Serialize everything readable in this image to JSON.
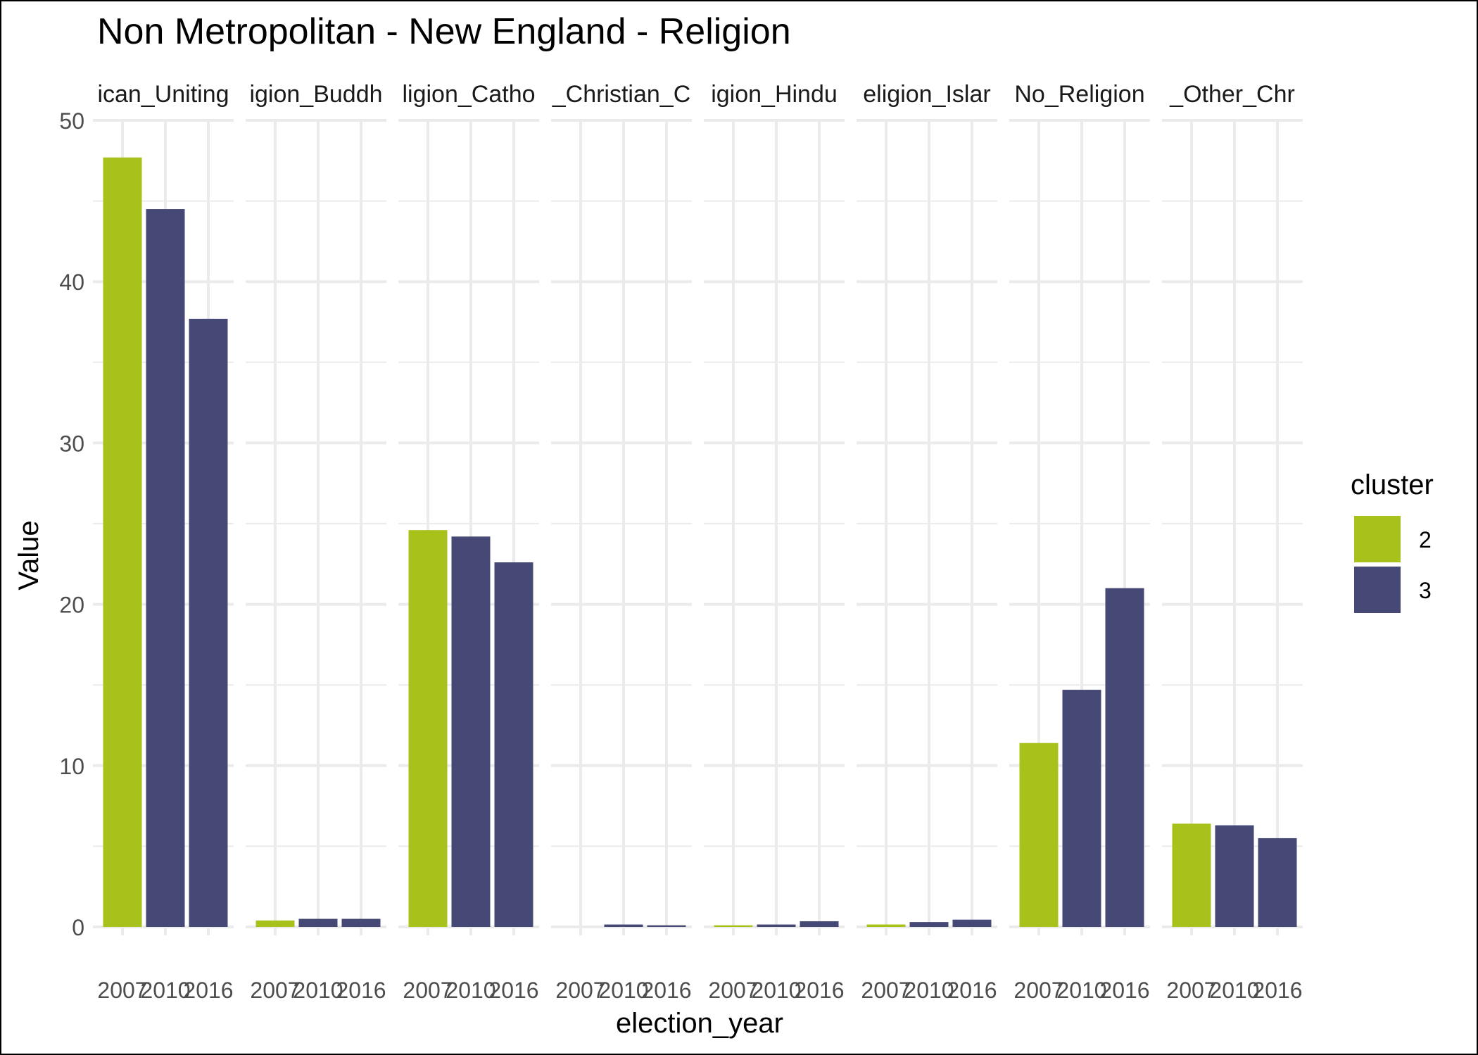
{
  "chart_data": {
    "type": "bar",
    "title": "Non Metropolitan - New England - Religion",
    "xlabel": "election_year",
    "ylabel": "Value",
    "ylim": [
      0,
      50
    ],
    "yticks": [
      0,
      10,
      20,
      30,
      40,
      50
    ],
    "grid": true,
    "legend": {
      "title": "cluster",
      "position": "right"
    },
    "colors": {
      "2": "#a8c21b",
      "3": "#464875"
    },
    "categories": [
      "2007",
      "2010",
      "2016"
    ],
    "facets": [
      {
        "label": "ican_Uniting",
        "bars": [
          {
            "x": "2007",
            "value": 47.7,
            "cluster": "2"
          },
          {
            "x": "2010",
            "value": 44.5,
            "cluster": "3"
          },
          {
            "x": "2016",
            "value": 37.7,
            "cluster": "3"
          }
        ]
      },
      {
        "label": "igion_Buddh",
        "bars": [
          {
            "x": "2007",
            "value": 0.4,
            "cluster": "2"
          },
          {
            "x": "2010",
            "value": 0.5,
            "cluster": "3"
          },
          {
            "x": "2016",
            "value": 0.5,
            "cluster": "3"
          }
        ]
      },
      {
        "label": "ligion_Catho",
        "bars": [
          {
            "x": "2007",
            "value": 24.6,
            "cluster": "2"
          },
          {
            "x": "2010",
            "value": 24.2,
            "cluster": "3"
          },
          {
            "x": "2016",
            "value": 22.6,
            "cluster": "3"
          }
        ]
      },
      {
        "label": "_Christian_C",
        "bars": [
          {
            "x": "2007",
            "value": 0.0,
            "cluster": "2"
          },
          {
            "x": "2010",
            "value": 0.15,
            "cluster": "3"
          },
          {
            "x": "2016",
            "value": 0.1,
            "cluster": "3"
          }
        ]
      },
      {
        "label": "igion_Hindu",
        "bars": [
          {
            "x": "2007",
            "value": 0.1,
            "cluster": "2"
          },
          {
            "x": "2010",
            "value": 0.15,
            "cluster": "3"
          },
          {
            "x": "2016",
            "value": 0.35,
            "cluster": "3"
          }
        ]
      },
      {
        "label": "eligion_Islar",
        "bars": [
          {
            "x": "2007",
            "value": 0.15,
            "cluster": "2"
          },
          {
            "x": "2010",
            "value": 0.3,
            "cluster": "3"
          },
          {
            "x": "2016",
            "value": 0.45,
            "cluster": "3"
          }
        ]
      },
      {
        "label": "No_Religion",
        "bars": [
          {
            "x": "2007",
            "value": 11.4,
            "cluster": "2"
          },
          {
            "x": "2010",
            "value": 14.7,
            "cluster": "3"
          },
          {
            "x": "2016",
            "value": 21.0,
            "cluster": "3"
          }
        ]
      },
      {
        "label": "_Other_Chr",
        "bars": [
          {
            "x": "2007",
            "value": 6.4,
            "cluster": "2"
          },
          {
            "x": "2010",
            "value": 6.3,
            "cluster": "3"
          },
          {
            "x": "2016",
            "value": 5.5,
            "cluster": "3"
          }
        ]
      }
    ]
  }
}
